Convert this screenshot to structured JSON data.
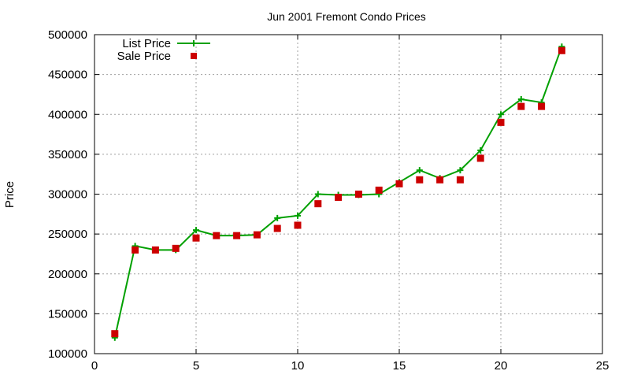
{
  "chart_data": {
    "type": "line",
    "title": "Jun 2001 Fremont Condo Prices",
    "xlabel": "",
    "ylabel": "Price",
    "xlim": [
      0,
      25
    ],
    "ylim": [
      100000,
      500000
    ],
    "xticks": [
      0,
      5,
      10,
      15,
      20,
      25
    ],
    "yticks": [
      100000,
      150000,
      200000,
      250000,
      300000,
      350000,
      400000,
      450000,
      500000
    ],
    "grid": true,
    "legend_position": "top-left",
    "x": [
      1,
      2,
      3,
      4,
      5,
      6,
      7,
      8,
      9,
      10,
      11,
      12,
      13,
      14,
      15,
      16,
      17,
      18,
      19,
      20,
      21,
      22,
      23
    ],
    "series": [
      {
        "name": "List Price",
        "style": "linespoints",
        "marker": "plus",
        "color": "#00a000",
        "values": [
          120000,
          235000,
          230000,
          230000,
          255000,
          248000,
          248000,
          249000,
          270000,
          273000,
          300000,
          299000,
          299000,
          300000,
          315000,
          330000,
          320000,
          330000,
          355000,
          400000,
          419000,
          415000,
          485000
        ]
      },
      {
        "name": "Sale Price",
        "style": "points",
        "marker": "square",
        "color": "#cc0000",
        "values": [
          125000,
          230000,
          230000,
          232000,
          245000,
          248000,
          248000,
          249000,
          257000,
          261000,
          288000,
          296000,
          300000,
          305000,
          313000,
          318000,
          318000,
          318000,
          345000,
          390000,
          410000,
          410000,
          480000
        ]
      }
    ]
  }
}
